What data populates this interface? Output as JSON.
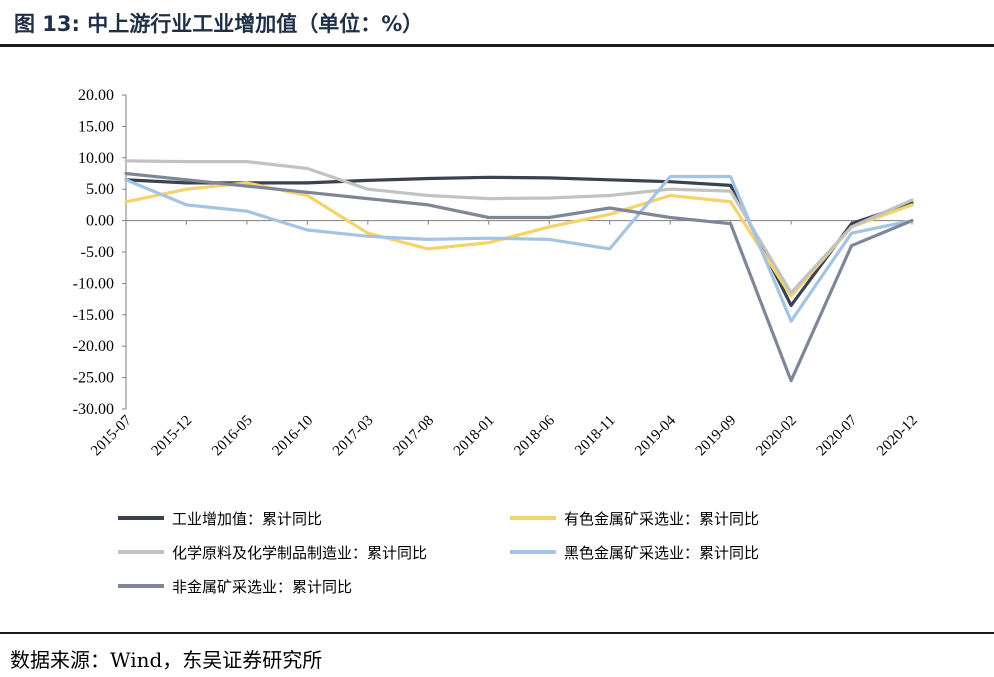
{
  "header": {
    "title": "图 13:  中上游行业工业增加值（单位：%）"
  },
  "footer": {
    "source": "数据来源：Wind，东吴证券研究所"
  },
  "chart_data": {
    "type": "line",
    "title": "图 13:  中上游行业工业增加值（单位：%）",
    "xlabel": "",
    "ylabel": "",
    "ylim": [
      -30,
      20
    ],
    "yticks": [
      "20.00",
      "15.00",
      "10.00",
      "5.00",
      "0.00",
      "-5.00",
      "-10.00",
      "-15.00",
      "-20.00",
      "-25.00",
      "-30.00"
    ],
    "ytick_values": [
      20,
      15,
      10,
      5,
      0,
      -5,
      -10,
      -15,
      -20,
      -25,
      -30
    ],
    "x": [
      "2015-07",
      "2015-12",
      "2016-05",
      "2016-10",
      "2017-03",
      "2017-08",
      "2018-01",
      "2018-06",
      "2018-11",
      "2019-04",
      "2019-09",
      "2020-02",
      "2020-07",
      "2020-12"
    ],
    "xticks": [
      "2015-07",
      "2015-12",
      "2016-05",
      "2016-10",
      "2017-03",
      "2017-08",
      "2018-01",
      "2018-06",
      "2018-11",
      "2019-04",
      "2019-09",
      "2020-02",
      "2020-07",
      "2020-12"
    ],
    "grid": false,
    "legend_position": "bottom",
    "series": [
      {
        "name": "工业增加值：累计同比",
        "color": "#3a4250",
        "values": [
          6.5,
          6.0,
          6.0,
          6.0,
          6.4,
          6.7,
          6.9,
          6.8,
          6.5,
          6.2,
          5.6,
          -13.5,
          -0.5,
          2.8
        ]
      },
      {
        "name": "有色金属矿采选业：累计同比",
        "color": "#f5d36a",
        "values": [
          3.0,
          5.0,
          6.0,
          4.0,
          -2.0,
          -4.5,
          -3.5,
          -1.0,
          1.0,
          4.0,
          3.0,
          -12.0,
          -1.0,
          2.5
        ]
      },
      {
        "name": "化学原料及化学制品制造业：累计同比",
        "color": "#c2c2c2",
        "values": [
          9.5,
          9.4,
          9.4,
          8.3,
          5.0,
          4.0,
          3.5,
          3.6,
          4.0,
          5.0,
          4.7,
          -11.5,
          -1.0,
          3.3
        ]
      },
      {
        "name": "黑色金属矿采选业：累计同比",
        "color": "#a4c4e4",
        "values": [
          6.5,
          2.5,
          1.5,
          -1.5,
          -2.5,
          -3.0,
          -2.8,
          -3.0,
          -4.5,
          7.0,
          7.0,
          -16.0,
          -2.0,
          0.0
        ]
      },
      {
        "name": "非金属矿采选业：累计同比",
        "color": "#7e8698",
        "values": [
          7.5,
          6.5,
          5.5,
          4.5,
          3.5,
          2.5,
          0.5,
          0.5,
          2.0,
          0.5,
          -0.5,
          -25.5,
          -4.0,
          0.0
        ]
      }
    ]
  }
}
